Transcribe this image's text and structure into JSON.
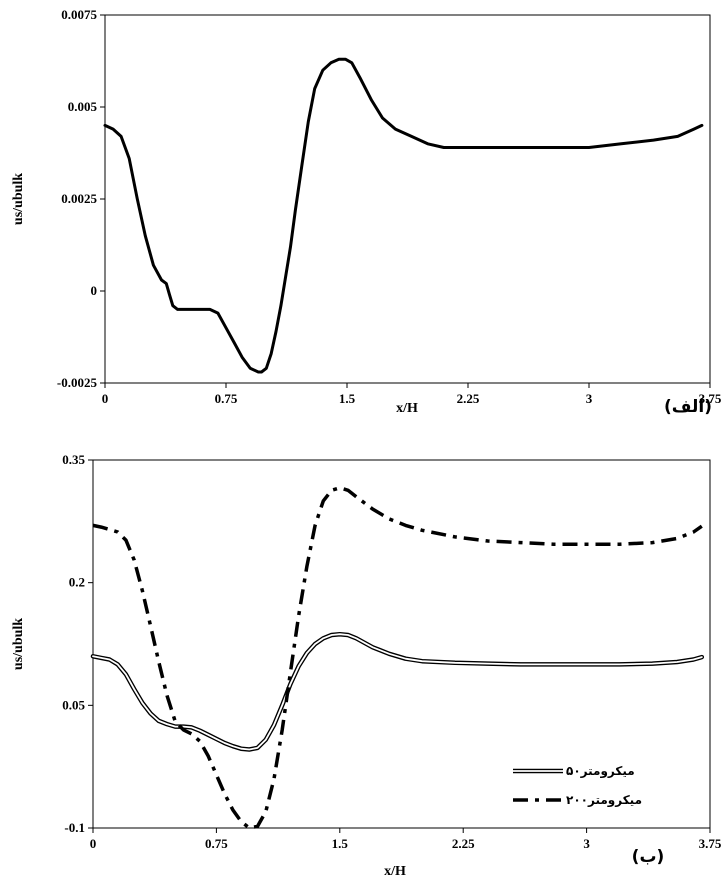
{
  "chart_data": [
    {
      "type": "line",
      "panel_label": "(الف)",
      "xlabel": "x/H",
      "ylabel": "us/ubulk",
      "xlim": [
        0,
        3.75
      ],
      "ylim": [
        -0.0025,
        0.0075
      ],
      "xticks": [
        0,
        0.75,
        1.5,
        2.25,
        3,
        3.75
      ],
      "xtick_labels": [
        "0",
        "0.75",
        "1.5",
        "2.25",
        "3",
        "3.75"
      ],
      "yticks": [
        -0.0025,
        0,
        0.0025,
        0.005,
        0.0075
      ],
      "ytick_labels": [
        "-0.0025",
        "0",
        "0.0025",
        "0.005",
        "0.0075"
      ],
      "grid": false,
      "series": [
        {
          "style": "solid",
          "x": [
            0,
            0.05,
            0.1,
            0.15,
            0.2,
            0.25,
            0.3,
            0.35,
            0.38,
            0.4,
            0.42,
            0.45,
            0.5,
            0.55,
            0.6,
            0.65,
            0.7,
            0.75,
            0.8,
            0.85,
            0.9,
            0.95,
            0.97,
            1.0,
            1.03,
            1.06,
            1.09,
            1.12,
            1.15,
            1.18,
            1.22,
            1.26,
            1.3,
            1.35,
            1.4,
            1.45,
            1.49,
            1.53,
            1.58,
            1.65,
            1.72,
            1.8,
            1.9,
            2.0,
            2.1,
            2.25,
            2.4,
            2.6,
            2.8,
            3.0,
            3.2,
            3.4,
            3.55,
            3.65,
            3.7
          ],
          "y": [
            0.0045,
            0.0044,
            0.0042,
            0.0036,
            0.0025,
            0.0015,
            0.0007,
            0.0003,
            0.0002,
            -0.0001,
            -0.0004,
            -0.0005,
            -0.0005,
            -0.0005,
            -0.0005,
            -0.0005,
            -0.0006,
            -0.001,
            -0.0014,
            -0.0018,
            -0.0021,
            -0.0022,
            -0.0022,
            -0.0021,
            -0.0017,
            -0.0011,
            -0.0004,
            0.0004,
            0.0012,
            0.0022,
            0.0034,
            0.0046,
            0.0055,
            0.006,
            0.0062,
            0.0063,
            0.0063,
            0.0062,
            0.0058,
            0.0052,
            0.0047,
            0.0044,
            0.0042,
            0.004,
            0.0039,
            0.0039,
            0.0039,
            0.0039,
            0.0039,
            0.0039,
            0.004,
            0.0041,
            0.0042,
            0.0044,
            0.0045
          ]
        }
      ]
    },
    {
      "type": "line",
      "panel_label": "(ب)",
      "xlabel": "x/H",
      "ylabel": "us/ubulk",
      "xlim": [
        0,
        3.75
      ],
      "ylim": [
        -0.1,
        0.35
      ],
      "xticks": [
        0,
        0.75,
        1.5,
        2.25,
        3,
        3.75
      ],
      "xtick_labels": [
        "0",
        "0.75",
        "1.5",
        "2.25",
        "3",
        "3.75"
      ],
      "yticks": [
        -0.1,
        0.05,
        0.2,
        0.35
      ],
      "ytick_labels": [
        "-0.1",
        "0.05",
        "0.2",
        "0.35"
      ],
      "grid": false,
      "legend_position": "bottom-right",
      "series": [
        {
          "name": "۵۰میکرومتر",
          "style": "double",
          "x": [
            0,
            0.05,
            0.1,
            0.15,
            0.2,
            0.25,
            0.3,
            0.35,
            0.4,
            0.45,
            0.5,
            0.55,
            0.6,
            0.65,
            0.7,
            0.75,
            0.8,
            0.85,
            0.9,
            0.95,
            1.0,
            1.05,
            1.1,
            1.15,
            1.2,
            1.25,
            1.3,
            1.35,
            1.4,
            1.45,
            1.5,
            1.55,
            1.6,
            1.7,
            1.8,
            1.9,
            2.0,
            2.2,
            2.4,
            2.6,
            2.8,
            3.0,
            3.2,
            3.4,
            3.55,
            3.65,
            3.7
          ],
          "y": [
            0.11,
            0.108,
            0.106,
            0.1,
            0.088,
            0.07,
            0.053,
            0.04,
            0.031,
            0.027,
            0.024,
            0.024,
            0.023,
            0.019,
            0.014,
            0.009,
            0.004,
            0.0,
            -0.003,
            -0.004,
            -0.002,
            0.008,
            0.026,
            0.05,
            0.076,
            0.098,
            0.114,
            0.125,
            0.132,
            0.136,
            0.137,
            0.136,
            0.132,
            0.121,
            0.113,
            0.107,
            0.104,
            0.102,
            0.101,
            0.1,
            0.1,
            0.1,
            0.1,
            0.101,
            0.103,
            0.106,
            0.109
          ]
        },
        {
          "name": "۲۰۰میکرومتر",
          "style": "dash-dot",
          "x": [
            0,
            0.05,
            0.1,
            0.15,
            0.2,
            0.25,
            0.3,
            0.35,
            0.4,
            0.45,
            0.5,
            0.55,
            0.6,
            0.65,
            0.7,
            0.75,
            0.8,
            0.85,
            0.9,
            0.95,
            1.0,
            1.05,
            1.1,
            1.15,
            1.2,
            1.25,
            1.3,
            1.35,
            1.4,
            1.45,
            1.5,
            1.55,
            1.6,
            1.7,
            1.8,
            1.9,
            2.0,
            2.2,
            2.4,
            2.6,
            2.8,
            3.0,
            3.2,
            3.4,
            3.55,
            3.65,
            3.7
          ],
          "y": [
            0.27,
            0.268,
            0.265,
            0.262,
            0.252,
            0.228,
            0.19,
            0.147,
            0.103,
            0.062,
            0.03,
            0.02,
            0.015,
            0.006,
            -0.012,
            -0.035,
            -0.058,
            -0.078,
            -0.092,
            -0.1,
            -0.098,
            -0.08,
            -0.04,
            0.02,
            0.09,
            0.16,
            0.22,
            0.27,
            0.3,
            0.313,
            0.316,
            0.313,
            0.305,
            0.29,
            0.278,
            0.27,
            0.264,
            0.256,
            0.251,
            0.249,
            0.247,
            0.247,
            0.247,
            0.249,
            0.254,
            0.262,
            0.269
          ]
        }
      ]
    }
  ]
}
